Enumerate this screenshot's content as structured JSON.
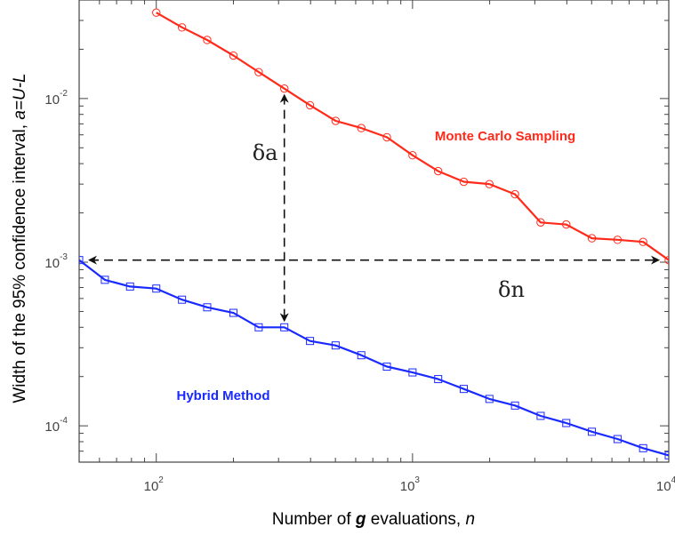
{
  "chart_data": {
    "type": "line",
    "x_scale": "log",
    "y_scale": "log",
    "xlim": [
      50,
      10000
    ],
    "ylim": [
      6e-05,
      0.04
    ],
    "grid": false,
    "x_ticks": [
      {
        "value": 100,
        "base": "10",
        "exp": "2"
      },
      {
        "value": 1000,
        "base": "10",
        "exp": "3"
      },
      {
        "value": 10000,
        "base": "10",
        "exp": "4"
      }
    ],
    "y_ticks": [
      {
        "value": 0.01,
        "base": "10",
        "exp": "-2"
      },
      {
        "value": 0.001,
        "base": "10",
        "exp": "-3"
      },
      {
        "value": 0.0001,
        "base": "10",
        "exp": "-4"
      }
    ],
    "xlabel": {
      "pre": "Number of ",
      "em": "g",
      "mid": " evaluations, ",
      "var": "n"
    },
    "ylabel": {
      "pre": "Width of the 95% confidence interval, ",
      "var": "a=U-L"
    },
    "series": [
      {
        "name": "Monte Carlo Sampling",
        "color": "#ff2a1a",
        "marker": "circle",
        "x": [
          100,
          126,
          158,
          200,
          251,
          316,
          398,
          501,
          631,
          794,
          1000,
          1259,
          1585,
          1995,
          2512,
          3162,
          3981,
          5012,
          6310,
          7943,
          10000
        ],
        "y": [
          0.0335,
          0.0272,
          0.0228,
          0.0183,
          0.0145,
          0.0115,
          0.0091,
          0.0073,
          0.0066,
          0.0058,
          0.0045,
          0.0036,
          0.0031,
          0.003,
          0.0026,
          0.00175,
          0.0017,
          0.0014,
          0.00137,
          0.00133,
          0.00103
        ]
      },
      {
        "name": "Hybrid Method",
        "color": "#1a2aff",
        "marker": "square",
        "x": [
          50,
          63,
          79,
          100,
          126,
          158,
          200,
          251,
          316,
          398,
          501,
          631,
          794,
          1000,
          1259,
          1585,
          1995,
          2512,
          3162,
          3981,
          5012,
          6310,
          7943,
          10000
        ],
        "y": [
          0.00103,
          0.00078,
          0.00071,
          0.00069,
          0.00059,
          0.00053,
          0.00049,
          0.0004,
          0.0004,
          0.00033,
          0.00031,
          0.00027,
          0.00023,
          0.000212,
          0.000193,
          0.000168,
          0.000146,
          0.000133,
          0.000115,
          0.000104,
          9.2e-05,
          8.3e-05,
          7.3e-05,
          6.6e-05
        ]
      }
    ],
    "annotations": [
      {
        "type": "vertical-double-arrow",
        "x": 316,
        "y_from": 0.0004,
        "y_to": 0.0115,
        "label": "δa"
      },
      {
        "type": "horizontal-double-arrow",
        "y": 0.00103,
        "x_from": 50,
        "x_to": 10000,
        "label": "δn"
      }
    ]
  }
}
